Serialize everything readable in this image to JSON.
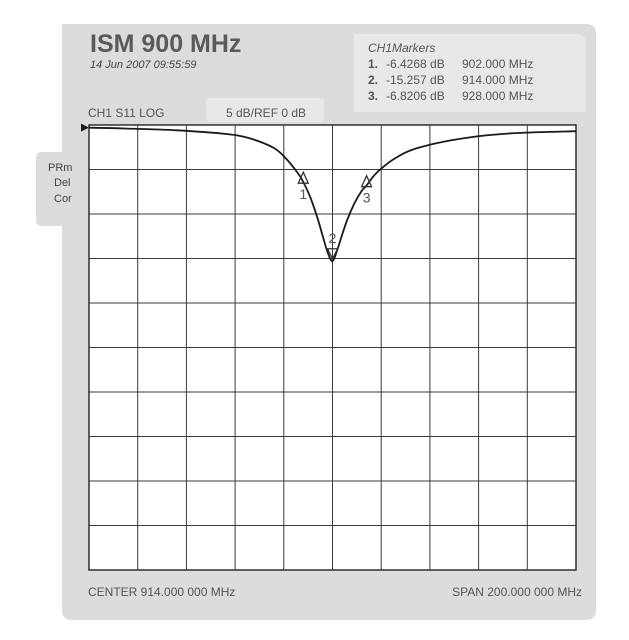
{
  "header": {
    "title": "ISM 900 MHz",
    "timestamp": "14 Jun 2007 09:55:59",
    "channel_label": "CH1 S11 LOG",
    "scale_label": "5 dB/REF 0 dB"
  },
  "markers_panel": {
    "title": "CH1Markers",
    "rows": [
      {
        "num": "1.",
        "level": "-6.4268 dB",
        "freq": "902.000 MHz"
      },
      {
        "num": "2.",
        "level": "-15.257 dB",
        "freq": "914.000 MHz"
      },
      {
        "num": "3.",
        "level": "-6.8206 dB",
        "freq": "928.000 MHz"
      }
    ]
  },
  "side_labels": [
    "PRm",
    "Del",
    "Cor"
  ],
  "footer": {
    "center": "CENTER 914.000 000 MHz",
    "span": "SPAN 200.000 000 MHz"
  },
  "colors": {
    "panel": "#dcdcdc",
    "trace": "#1a1a1a",
    "grid": "#3a3a3a"
  },
  "chart_data": {
    "type": "line",
    "title": "ISM 900 MHz",
    "xlabel": "",
    "ylabel": "",
    "x_unit": "MHz",
    "y_unit": "dB",
    "xlim": [
      814,
      1014
    ],
    "ylim": [
      -50,
      0
    ],
    "grid": true,
    "grid_divisions": {
      "x": 10,
      "y": 10
    },
    "series": [
      {
        "x": [
          814,
          830,
          850,
          870,
          880,
          890,
          895,
          900,
          902,
          905,
          908,
          910,
          912,
          914,
          916,
          918,
          920,
          923,
          926,
          928,
          932,
          940,
          950,
          970,
          990,
          1014
        ],
        "y": [
          -0.3,
          -0.4,
          -0.6,
          -1.0,
          -1.5,
          -2.6,
          -3.8,
          -5.5,
          -6.4,
          -8.2,
          -10.6,
          -12.5,
          -14.3,
          -15.3,
          -14.0,
          -12.3,
          -10.7,
          -8.8,
          -7.4,
          -6.8,
          -5.4,
          -3.7,
          -2.5,
          -1.4,
          -0.9,
          -0.7
        ]
      }
    ],
    "markers": [
      {
        "label": "1",
        "x": 902.0,
        "y": -6.4268
      },
      {
        "label": "2",
        "x": 914.0,
        "y": -15.257
      },
      {
        "label": "3",
        "x": 928.0,
        "y": -6.8206
      }
    ]
  }
}
